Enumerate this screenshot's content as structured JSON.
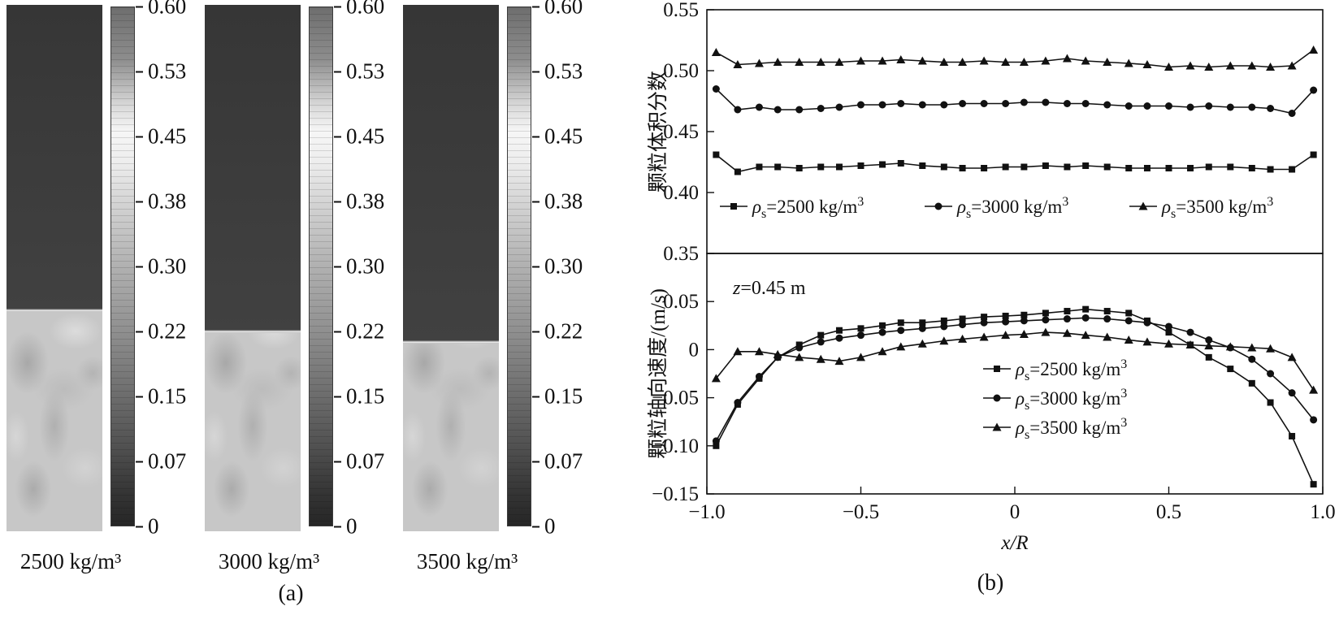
{
  "panel_a": {
    "label": "(a)",
    "colorbar_ticks": [
      "0.60",
      "0.53",
      "0.45",
      "0.38",
      "0.30",
      "0.22",
      "0.15",
      "0.07",
      "0"
    ],
    "panels": [
      {
        "label": "2500 kg/m³"
      },
      {
        "label": "3000 kg/m³"
      },
      {
        "label": "3500 kg/m³"
      }
    ]
  },
  "panel_b": {
    "label": "(b)"
  },
  "chart_data": [
    {
      "type": "line",
      "title": "",
      "ylabel": "颗粒体积分数",
      "xlabel": "",
      "ylim": [
        0.35,
        0.55
      ],
      "xlim": [
        -1.0,
        1.0
      ],
      "grid": false,
      "legend_position": "inside-bottom-inline",
      "yticks": [
        0.35,
        0.4,
        0.45,
        0.5,
        0.55
      ],
      "yticklabels": [
        "0.35",
        "0.40",
        "0.45",
        "0.50",
        "0.55"
      ],
      "x": [
        -0.97,
        -0.9,
        -0.83,
        -0.77,
        -0.7,
        -0.63,
        -0.57,
        -0.5,
        -0.43,
        -0.37,
        -0.3,
        -0.23,
        -0.17,
        -0.1,
        -0.03,
        0.03,
        0.1,
        0.17,
        0.23,
        0.3,
        0.37,
        0.43,
        0.5,
        0.57,
        0.63,
        0.7,
        0.77,
        0.83,
        0.9,
        0.97
      ],
      "series": [
        {
          "id": "rho-2500",
          "name": "ρs=2500 kg/m³",
          "marker": "square",
          "label_parts": {
            "sym": "ρ",
            "sub": "s",
            "mid": "=2500 kg/m",
            "sup": "3"
          },
          "values": [
            0.431,
            0.417,
            0.421,
            0.421,
            0.42,
            0.421,
            0.421,
            0.422,
            0.423,
            0.424,
            0.422,
            0.421,
            0.42,
            0.42,
            0.421,
            0.421,
            0.422,
            0.421,
            0.422,
            0.421,
            0.42,
            0.42,
            0.42,
            0.42,
            0.421,
            0.421,
            0.42,
            0.419,
            0.419,
            0.431
          ]
        },
        {
          "id": "rho-3000",
          "name": "ρs=3000 kg/m³",
          "marker": "circle",
          "label_parts": {
            "sym": "ρ",
            "sub": "s",
            "mid": "=3000 kg/m",
            "sup": "3"
          },
          "values": [
            0.485,
            0.468,
            0.47,
            0.468,
            0.468,
            0.469,
            0.47,
            0.472,
            0.472,
            0.473,
            0.472,
            0.472,
            0.473,
            0.473,
            0.473,
            0.474,
            0.474,
            0.473,
            0.473,
            0.472,
            0.471,
            0.471,
            0.471,
            0.47,
            0.471,
            0.47,
            0.47,
            0.469,
            0.465,
            0.484
          ]
        },
        {
          "id": "rho-3500",
          "name": "ρs=3500 kg/m³",
          "marker": "triangle",
          "label_parts": {
            "sym": "ρ",
            "sub": "s",
            "mid": "=3500 kg/m",
            "sup": "3"
          },
          "values": [
            0.515,
            0.505,
            0.506,
            0.507,
            0.507,
            0.507,
            0.507,
            0.508,
            0.508,
            0.509,
            0.508,
            0.507,
            0.507,
            0.508,
            0.507,
            0.507,
            0.508,
            0.51,
            0.508,
            0.507,
            0.506,
            0.505,
            0.503,
            0.504,
            0.503,
            0.504,
            0.504,
            0.503,
            0.504,
            0.517
          ]
        }
      ]
    },
    {
      "type": "line",
      "title": "",
      "ylabel": "颗粒轴向速度/(m/s)",
      "xlabel": "x/R",
      "annotation": "z=0.45 m",
      "annotation_parts": {
        "sym": "z",
        "rest": "=0.45 m"
      },
      "ylim": [
        -0.15,
        0.1
      ],
      "xlim": [
        -1.0,
        1.0
      ],
      "grid": false,
      "legend_position": "inside-center-stack",
      "yticks": [
        -0.15,
        -0.1,
        -0.05,
        0,
        0.05
      ],
      "yticklabels": [
        "−0.15",
        "−0.10",
        "−0.05",
        "0",
        "0.05"
      ],
      "xticks": [
        -1.0,
        -0.5,
        0,
        0.5,
        1.0
      ],
      "xticklabels": [
        "−1.0",
        "−0.5",
        "0",
        "0.5",
        "1.0"
      ],
      "x": [
        -0.97,
        -0.9,
        -0.83,
        -0.77,
        -0.7,
        -0.63,
        -0.57,
        -0.5,
        -0.43,
        -0.37,
        -0.3,
        -0.23,
        -0.17,
        -0.1,
        -0.03,
        0.03,
        0.1,
        0.17,
        0.23,
        0.3,
        0.37,
        0.43,
        0.5,
        0.57,
        0.63,
        0.7,
        0.77,
        0.83,
        0.9,
        0.97
      ],
      "series": [
        {
          "id": "rho-2500",
          "name": "ρs=2500 kg/m³",
          "marker": "square",
          "label_parts": {
            "sym": "ρ",
            "sub": "s",
            "mid": "=2500 kg/m",
            "sup": "3"
          },
          "values": [
            -0.1,
            -0.057,
            -0.03,
            -0.008,
            0.005,
            0.015,
            0.02,
            0.022,
            0.025,
            0.028,
            0.028,
            0.03,
            0.032,
            0.034,
            0.035,
            0.036,
            0.038,
            0.04,
            0.042,
            0.04,
            0.038,
            0.03,
            0.018,
            0.005,
            -0.008,
            -0.02,
            -0.035,
            -0.055,
            -0.09,
            -0.14
          ]
        },
        {
          "id": "rho-3000",
          "name": "ρs=3000 kg/m³",
          "marker": "circle",
          "label_parts": {
            "sym": "ρ",
            "sub": "s",
            "mid": "=3000 kg/m",
            "sup": "3"
          },
          "values": [
            -0.095,
            -0.055,
            -0.028,
            -0.008,
            0.002,
            0.008,
            0.012,
            0.015,
            0.018,
            0.02,
            0.022,
            0.024,
            0.026,
            0.028,
            0.029,
            0.03,
            0.031,
            0.032,
            0.033,
            0.032,
            0.03,
            0.028,
            0.024,
            0.018,
            0.01,
            0.002,
            -0.01,
            -0.025,
            -0.045,
            -0.073
          ]
        },
        {
          "id": "rho-3500",
          "name": "ρs=3500 kg/m³",
          "marker": "triangle",
          "label_parts": {
            "sym": "ρ",
            "sub": "s",
            "mid": "=3500 kg/m",
            "sup": "3"
          },
          "values": [
            -0.03,
            -0.002,
            -0.002,
            -0.005,
            -0.008,
            -0.01,
            -0.012,
            -0.008,
            -0.002,
            0.003,
            0.006,
            0.009,
            0.011,
            0.013,
            0.015,
            0.016,
            0.018,
            0.017,
            0.015,
            0.013,
            0.01,
            0.008,
            0.006,
            0.005,
            0.004,
            0.003,
            0.002,
            0.001,
            -0.008,
            -0.042
          ]
        }
      ]
    }
  ]
}
